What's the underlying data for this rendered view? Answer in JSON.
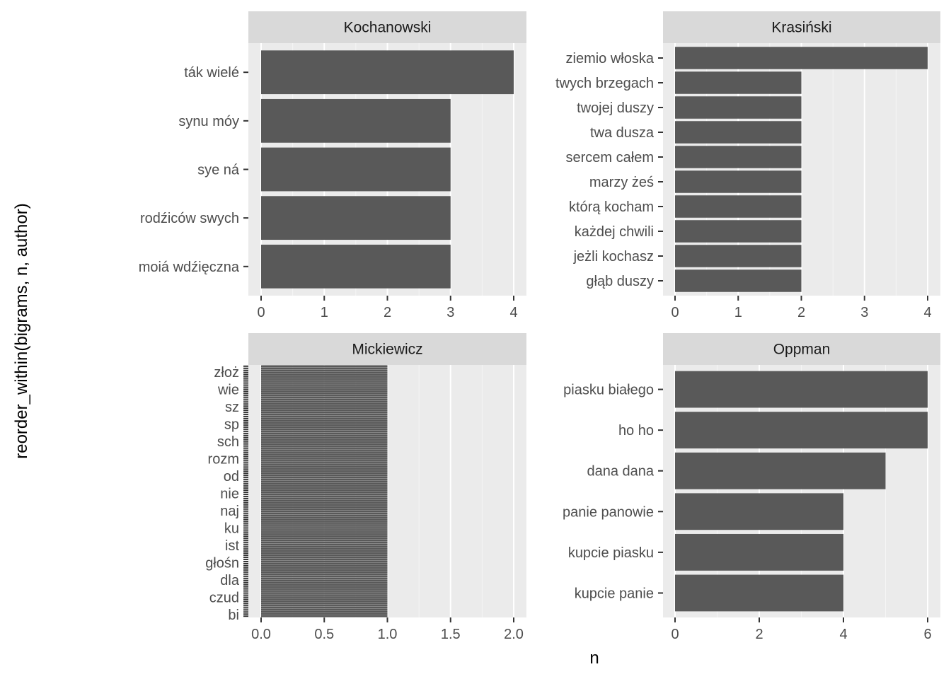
{
  "axis": {
    "xlabel": "n",
    "ylabel": "reorder_within(bigrams, n, author)"
  },
  "chart_data": [
    {
      "type": "bar",
      "orientation": "horizontal",
      "panel": "Kochanowski",
      "categories": [
        "ták wielé",
        "synu móy",
        "sye ná",
        "rodźiców swych",
        "moiá wdźięczna"
      ],
      "values": [
        4,
        3,
        3,
        3,
        3
      ],
      "xlim": [
        0,
        4.2
      ],
      "xticks": [
        0,
        1,
        2,
        3,
        4
      ],
      "xtick_labels": [
        "0",
        "1",
        "2",
        "3",
        "4"
      ],
      "grid": true
    },
    {
      "type": "bar",
      "orientation": "horizontal",
      "panel": "Krasiński",
      "categories": [
        "ziemio włoska",
        "twych brzegach",
        "twojej duszy",
        "twa dusza",
        "sercem całem",
        "marzy żeś",
        "którą kocham",
        "każdej chwili",
        "jeżli kochasz",
        "głąb duszy"
      ],
      "values": [
        4,
        2,
        2,
        2,
        2,
        2,
        2,
        2,
        2,
        2
      ],
      "xlim": [
        0,
        4.2
      ],
      "xticks": [
        0,
        1,
        2,
        3,
        4
      ],
      "xtick_labels": [
        "0",
        "1",
        "2",
        "3",
        "4"
      ],
      "grid": true
    },
    {
      "type": "bar",
      "orientation": "horizontal",
      "panel": "Mickiewicz",
      "categories_note_visible": [
        "złoż",
        "wie",
        "sz",
        "sp",
        "sch",
        "rozm",
        "od",
        "nie",
        "naj",
        "ku",
        "ist",
        "głośn",
        "dla",
        "czud",
        "bi"
      ],
      "bar_count": 120,
      "value_all_bars": 1,
      "xlim": [
        0,
        2.1
      ],
      "xticks": [
        0,
        0.5,
        1,
        1.5,
        2
      ],
      "xtick_labels": [
        "0.0",
        "0.5",
        "1.0",
        "1.5",
        "2.0"
      ],
      "grid": true
    },
    {
      "type": "bar",
      "orientation": "horizontal",
      "panel": "Oppman",
      "categories": [
        "piasku białego",
        "ho ho",
        "dana dana",
        "panie panowie",
        "kupcie piasku",
        "kupcie panie"
      ],
      "values": [
        6,
        6,
        5,
        4,
        4,
        4
      ],
      "xlim": [
        0,
        6.3
      ],
      "xticks": [
        0,
        2,
        4,
        6
      ],
      "xtick_labels": [
        "0",
        "2",
        "4",
        "6"
      ],
      "grid": true
    }
  ]
}
